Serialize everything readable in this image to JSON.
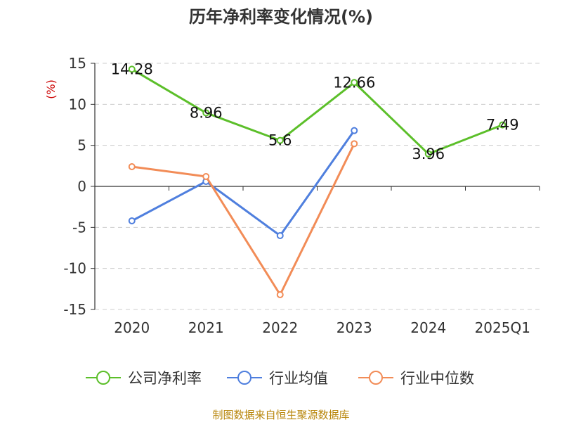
{
  "chart_data": {
    "type": "line",
    "title": "历年净利率变化情况(%)",
    "ylabel": "(%)",
    "ylim": [
      -15,
      15
    ],
    "yticks": [
      15,
      10,
      5,
      0,
      -5,
      -10,
      -15
    ],
    "ytick_labels": [
      "15",
      "10",
      "5",
      "0",
      "-5",
      "-10",
      "-15"
    ],
    "categories": [
      "2020",
      "2021",
      "2022",
      "2023",
      "2024",
      "2025Q1"
    ],
    "grid": "horizontal dashed",
    "legend_position": "bottom",
    "series": [
      {
        "name": "公司净利率",
        "color": "#5cbf2a",
        "values": [
          14.28,
          8.96,
          5.6,
          12.66,
          3.96,
          7.49
        ],
        "labels": [
          "14.28",
          "8.96",
          "5.6",
          "12.66",
          "3.96",
          "7.49"
        ]
      },
      {
        "name": "行业均值",
        "color": "#4f7fde",
        "values": [
          -4.2,
          0.6,
          -6.0,
          6.8,
          null,
          null
        ]
      },
      {
        "name": "行业中位数",
        "color": "#f28c57",
        "values": [
          2.4,
          1.2,
          -13.2,
          5.2,
          null,
          null
        ]
      }
    ]
  },
  "footer": {
    "source": "制图数据来自恒生聚源数据库"
  }
}
